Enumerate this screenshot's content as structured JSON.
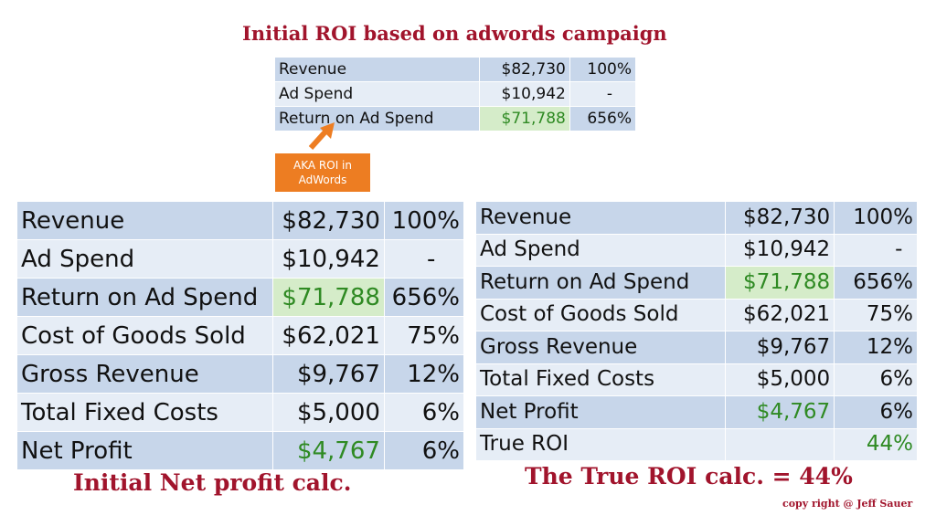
{
  "main_title": "Initial ROI based on adwords campaign",
  "small_table": {
    "rows": [
      {
        "label": "Revenue",
        "amount": "$82,730",
        "percent": "100%"
      },
      {
        "label": "Ad Spend",
        "amount": "$10,942",
        "percent": "-"
      },
      {
        "label": "Return on Ad Spend",
        "amount": "$71,788",
        "percent": "656%"
      }
    ]
  },
  "aka_box": {
    "line1": "AKA ROI in",
    "line2": "AdWords"
  },
  "left_table": {
    "rows": [
      {
        "label": "Revenue",
        "amount": "$82,730",
        "percent": "100%"
      },
      {
        "label": "Ad Spend",
        "amount": "$10,942",
        "percent": "-"
      },
      {
        "label": "Return on Ad Spend",
        "amount": "$71,788",
        "percent": "656%"
      },
      {
        "label": "Cost of Goods Sold",
        "amount": "$62,021",
        "percent": "75%"
      },
      {
        "label": "Gross Revenue",
        "amount": "$9,767",
        "percent": "12%"
      },
      {
        "label": "Total Fixed Costs",
        "amount": "$5,000",
        "percent": "6%"
      },
      {
        "label": "Net Profit",
        "amount": "$4,767",
        "percent": "6%"
      }
    ]
  },
  "right_table": {
    "rows": [
      {
        "label": "Revenue",
        "amount": "$82,730",
        "percent": "100%"
      },
      {
        "label": "Ad Spend",
        "amount": "$10,942",
        "percent": "-"
      },
      {
        "label": "Return on Ad Spend",
        "amount": "$71,788",
        "percent": "656%"
      },
      {
        "label": "Cost of Goods Sold",
        "amount": "$62,021",
        "percent": "75%"
      },
      {
        "label": "Gross Revenue",
        "amount": "$9,767",
        "percent": "12%"
      },
      {
        "label": "Total Fixed Costs",
        "amount": "$5,000",
        "percent": "6%"
      },
      {
        "label": "Net Profit",
        "amount": "$4,767",
        "percent": "6%"
      },
      {
        "label": "True ROI",
        "amount": "",
        "percent": "44%"
      }
    ]
  },
  "left_caption": "Initial Net profit calc.",
  "right_caption": "The True ROI calc. = 44%",
  "copyright": "copy right @ Jeff Sauer",
  "colors": {
    "title_red": "#a1142c",
    "row_dark": "#c7d6ea",
    "row_light": "#e6edf6",
    "highlight_green_bg": "#d5ecc9",
    "green_text": "#2f8a23",
    "callout_orange": "#ed7d22"
  }
}
